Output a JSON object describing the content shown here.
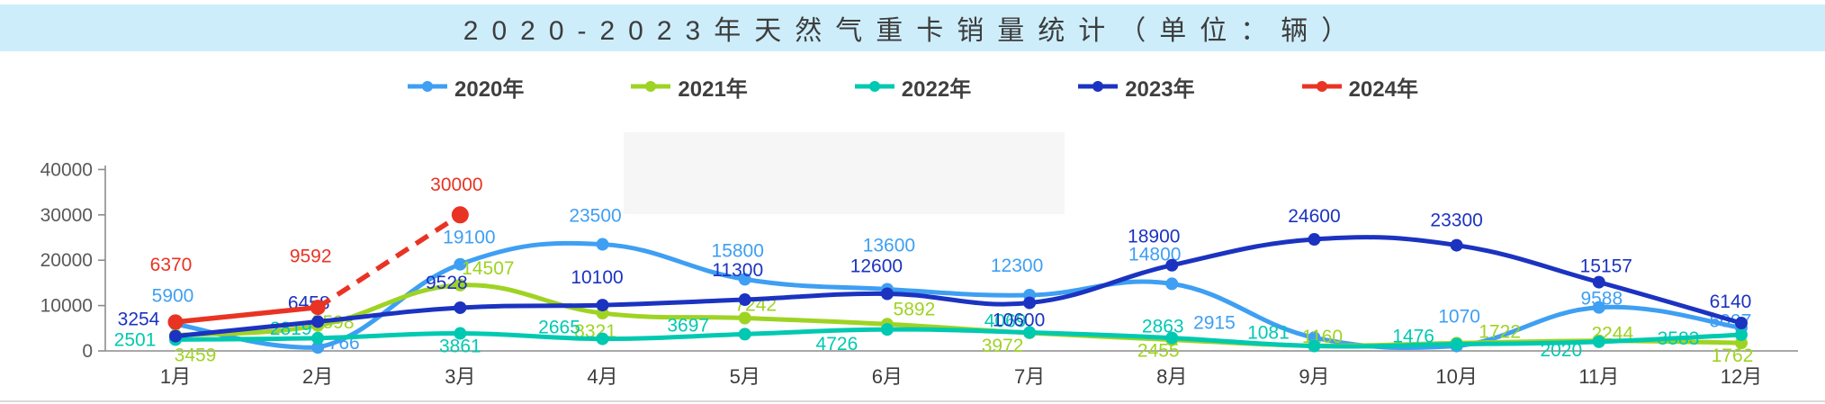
{
  "title": {
    "text": "2020-2023年天然气重卡销量统计（单位：辆）"
  },
  "legend": {
    "items": [
      {
        "label": "2020年",
        "color": "#3E9FF3"
      },
      {
        "label": "2021年",
        "color": "#9FD323"
      },
      {
        "label": "2022年",
        "color": "#00C9B1"
      },
      {
        "label": "2023年",
        "color": "#1B33C0"
      },
      {
        "label": "2024年",
        "color": "#E93323"
      }
    ]
  },
  "chart_data": {
    "type": "line",
    "title": "2020-2023年天然气重卡销量统计（单位：辆）",
    "categories": [
      "1月",
      "2月",
      "3月",
      "4月",
      "5月",
      "6月",
      "7月",
      "8月",
      "9月",
      "10月",
      "11月",
      "12月"
    ],
    "y_ticks": [
      0,
      10000,
      20000,
      30000,
      40000
    ],
    "ylim": [
      0,
      40000
    ],
    "grid": false,
    "legend_position": "top",
    "data_labels": true,
    "series": [
      {
        "name": "2020年",
        "color": "#3E9FF3",
        "style": "solid",
        "smooth": true,
        "values": [
          5900,
          766,
          19100,
          23500,
          15800,
          13600,
          12300,
          14800,
          2915,
          1070,
          9588,
          5097
        ]
      },
      {
        "name": "2021年",
        "color": "#9FD323",
        "style": "solid",
        "smooth": true,
        "values": [
          3459,
          5598,
          14507,
          8321,
          7242,
          5892,
          3972,
          2455,
          1160,
          1722,
          2244,
          1762
        ]
      },
      {
        "name": "2022年",
        "color": "#00C9B1",
        "style": "solid",
        "smooth": true,
        "values": [
          2501,
          2819,
          3861,
          2665,
          3697,
          4726,
          4069,
          2863,
          1081,
          1476,
          2020,
          3583
        ]
      },
      {
        "name": "2023年",
        "color": "#1B33C0",
        "style": "solid",
        "smooth": true,
        "values": [
          3254,
          6458,
          9528,
          10100,
          11300,
          12600,
          10600,
          18900,
          24600,
          23300,
          15157,
          6140
        ]
      },
      {
        "name": "2024年",
        "color": "#E93323",
        "style": "dashed_forecast",
        "smooth": false,
        "dash_from_index": 1,
        "values": [
          6370,
          9592,
          30000,
          null,
          null,
          null,
          null,
          null,
          null,
          null,
          null,
          null
        ]
      }
    ]
  },
  "colors": {
    "title_bar_bg": "#CDEDFB",
    "title_text": "#3D3D3D",
    "axis_text": "#595959",
    "axis_line": "#8C8C8C",
    "month_text": "#3C3C3C",
    "bottom_rule": "#D9D9D9"
  }
}
